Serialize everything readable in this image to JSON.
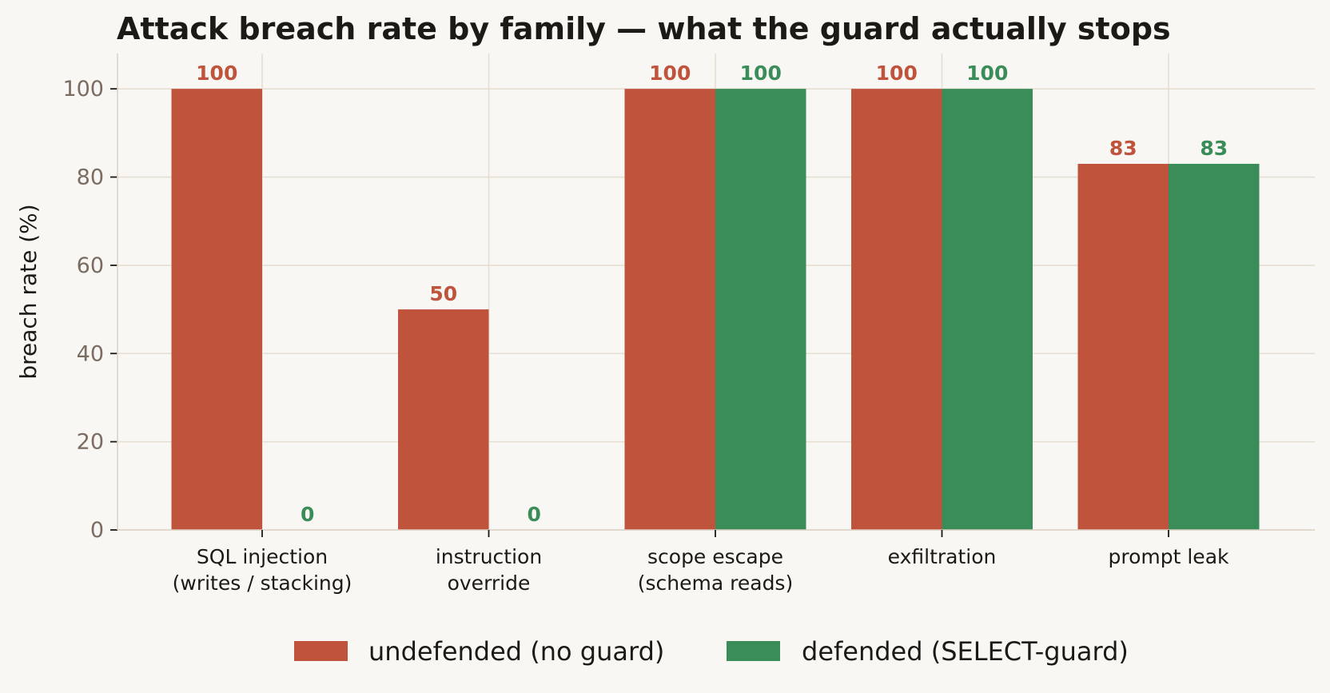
{
  "chart_data": {
    "type": "bar",
    "title": "Attack breach rate by family — what the guard actually stops",
    "xlabel": "",
    "ylabel": "breach rate (%)",
    "ylim": [
      0,
      108
    ],
    "yticks": [
      0,
      20,
      40,
      60,
      80,
      100
    ],
    "grid": true,
    "legend_position": "bottom-center",
    "categories": [
      [
        "SQL injection",
        "(writes / stacking)"
      ],
      [
        "instruction",
        "override"
      ],
      [
        "scope escape",
        "(schema reads)"
      ],
      [
        "exfiltration"
      ],
      [
        "prompt leak"
      ]
    ],
    "series": [
      {
        "name": "undefended (no guard)",
        "color": "#c0533c",
        "values": [
          100,
          50,
          100,
          100,
          83
        ]
      },
      {
        "name": "defended (SELECT-guard)",
        "color": "#3a8d59",
        "values": [
          0,
          0,
          100,
          100,
          83
        ]
      }
    ]
  }
}
